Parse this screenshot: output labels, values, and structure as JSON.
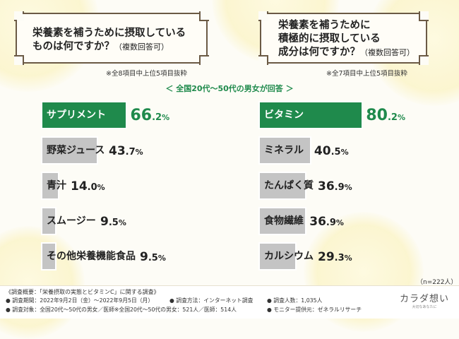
{
  "chart_data": [
    {
      "type": "bar",
      "title": "栄養素を補うために摂取しているものは何ですか？",
      "title_note": "（複数回答可）",
      "note": "※全8項目中上位5項目抜粋",
      "categories": [
        "サプリメント",
        "野菜ジュース",
        "青汁",
        "スムージー",
        "その他栄養機能食品"
      ],
      "values": [
        66.2,
        43.7,
        14.0,
        9.5,
        9.5
      ],
      "unit": "%",
      "highlight_color": "#1f8a4c",
      "bar_color": "#c4c4c4"
    },
    {
      "type": "bar",
      "title": "栄養素を補うために積極的に摂取している成分は何ですか？",
      "title_note": "（複数回答可）",
      "note": "※全7項目中上位5項目抜粋",
      "categories": [
        "ビタミン",
        "ミネラル",
        "たんぱく質",
        "食物繊維",
        "カルシウム"
      ],
      "values": [
        80.2,
        40.5,
        36.9,
        36.9,
        29.3
      ],
      "unit": "%",
      "highlight_color": "#1f8a4c",
      "bar_color": "#c4c4c4"
    }
  ],
  "header": {
    "left_question": "栄養素を補うために摂取している\nものは何ですか？",
    "left_question_note": "（複数回答可）",
    "right_question": "栄養素を補うために\n積極的に摂取している\n成分は何ですか？",
    "right_question_note": "（複数回答可）",
    "left_note": "※全8項目中上位5項目抜粋",
    "right_note": "※全7項目中上位5項目抜粋",
    "subtitle": "＜ 全国20代〜50代の男女が回答 ＞"
  },
  "sample_size": "（n=222人）",
  "footer": {
    "title": "《調査概要：「栄養摂取の実態とビタミンC」に関する調査》",
    "items": [
      "● 調査期間：2022年9月2日（金）〜2022年9月5日（月）",
      "● 調査方法：インターネット調査",
      "● 調査人数：1,035人",
      "● 調査対象：全国20代〜50代の男女／医師※全国20代〜50代の男女：521人／医師：514人",
      "● モニター提供元：ゼネラルリサーチ"
    ]
  },
  "brand": {
    "name": "カラダ想い",
    "tagline": "大切なあなたに"
  }
}
